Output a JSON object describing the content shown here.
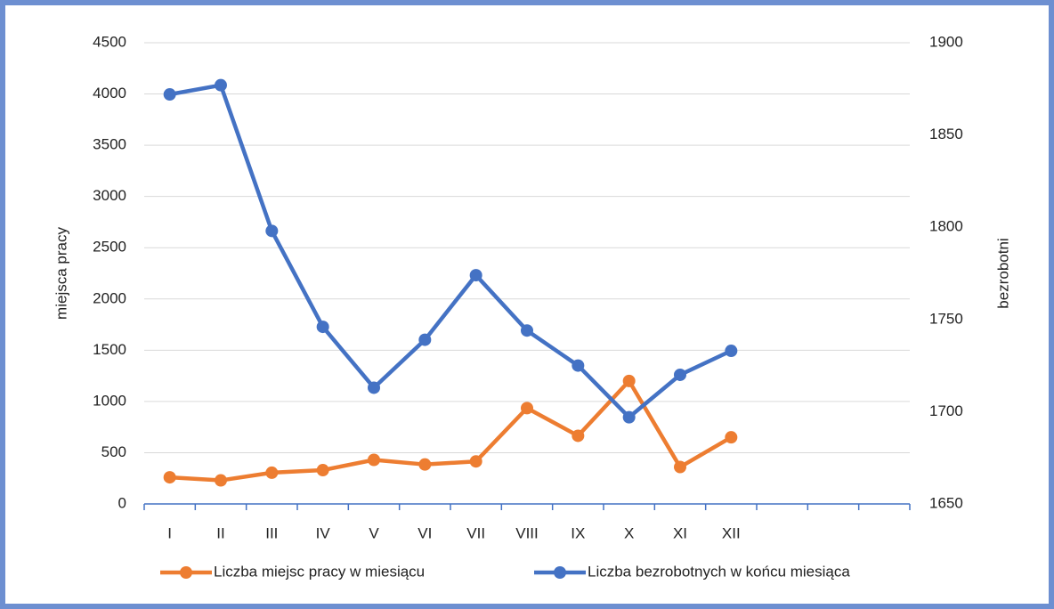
{
  "chart_data": {
    "type": "line",
    "categories": [
      "I",
      "II",
      "III",
      "IV",
      "V",
      "VI",
      "VII",
      "VIII",
      "IX",
      "X",
      "XI",
      "XII",
      null,
      null,
      null
    ],
    "series": [
      {
        "name": "Liczba miejsc pracy w miesiącu",
        "color": "#ed7d31",
        "values": [
          260,
          230,
          305,
          330,
          430,
          385,
          415,
          935,
          665,
          1200,
          360,
          650,
          null,
          null,
          null
        ]
      },
      {
        "name": "Liczba bezrobotnych w końcu miesiąca",
        "color": "#4472c4",
        "axis": "y2",
        "values": [
          1872,
          1877,
          1798,
          1746,
          1713,
          1739,
          1774,
          1744,
          1725,
          1697,
          1720,
          1733,
          null,
          null,
          null
        ]
      }
    ],
    "ylabel": "miejsca pracy",
    "y2label": "bezrobotni",
    "ylim": [
      0,
      4500
    ],
    "yticks": [
      0,
      500,
      1000,
      1500,
      2000,
      2500,
      3000,
      3500,
      4000,
      4500
    ],
    "y2lim": [
      1650,
      1900
    ],
    "y2ticks": [
      1650,
      1700,
      1750,
      1800,
      1850,
      1900
    ],
    "grid": true,
    "legend": "bottom"
  }
}
